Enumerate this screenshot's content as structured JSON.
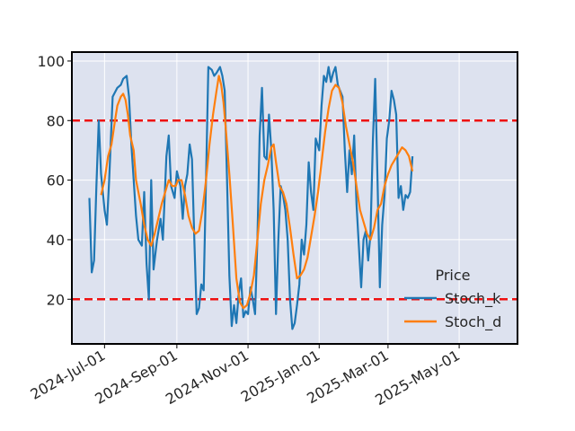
{
  "chart_data": {
    "type": "line",
    "title": "",
    "xlabel": "",
    "ylabel": "",
    "ylim": [
      5,
      103
    ],
    "xlim": [
      "2024-06-03",
      "2025-06-20"
    ],
    "grid": true,
    "legend": {
      "title": "Price",
      "location": "lower-right"
    },
    "y_ticks": [
      20,
      40,
      60,
      80,
      100
    ],
    "x_ticks": [
      {
        "date": "2024-07-01",
        "label": "2024-Jul-01"
      },
      {
        "date": "2024-09-01",
        "label": "2024-Sep-01"
      },
      {
        "date": "2024-11-01",
        "label": "2024-Nov-01"
      },
      {
        "date": "2025-01-01",
        "label": "2025-Jan-01"
      },
      {
        "date": "2025-03-01",
        "label": "2025-Mar-01"
      },
      {
        "date": "2025-05-01",
        "label": "2025-May-01"
      }
    ],
    "reference_lines": [
      {
        "y": 80,
        "color": "#ee1111",
        "style": "dashed"
      },
      {
        "y": 20,
        "color": "#ee1111",
        "style": "dashed"
      }
    ],
    "series": [
      {
        "name": "Stoch_k",
        "color": "#1f77b4",
        "points": [
          [
            "2024-06-18",
            54
          ],
          [
            "2024-06-20",
            29
          ],
          [
            "2024-06-22",
            33
          ],
          [
            "2024-06-24",
            58
          ],
          [
            "2024-06-26",
            80
          ],
          [
            "2024-06-28",
            62
          ],
          [
            "2024-07-01",
            50
          ],
          [
            "2024-07-03",
            45
          ],
          [
            "2024-07-05",
            60
          ],
          [
            "2024-07-08",
            88
          ],
          [
            "2024-07-12",
            91
          ],
          [
            "2024-07-15",
            92
          ],
          [
            "2024-07-17",
            94
          ],
          [
            "2024-07-20",
            95
          ],
          [
            "2024-07-22",
            88
          ],
          [
            "2024-07-24",
            72
          ],
          [
            "2024-07-26",
            60
          ],
          [
            "2024-07-28",
            48
          ],
          [
            "2024-07-30",
            40
          ],
          [
            "2024-08-02",
            38
          ],
          [
            "2024-08-04",
            56
          ],
          [
            "2024-08-06",
            32
          ],
          [
            "2024-08-08",
            20
          ],
          [
            "2024-08-10",
            60
          ],
          [
            "2024-08-12",
            30
          ],
          [
            "2024-08-15",
            40
          ],
          [
            "2024-08-18",
            47
          ],
          [
            "2024-08-20",
            40
          ],
          [
            "2024-08-23",
            68
          ],
          [
            "2024-08-25",
            75
          ],
          [
            "2024-08-27",
            58
          ],
          [
            "2024-08-30",
            54
          ],
          [
            "2024-09-01",
            63
          ],
          [
            "2024-09-04",
            58
          ],
          [
            "2024-09-06",
            47
          ],
          [
            "2024-09-08",
            58
          ],
          [
            "2024-09-10",
            62
          ],
          [
            "2024-09-12",
            72
          ],
          [
            "2024-09-14",
            67
          ],
          [
            "2024-09-16",
            40
          ],
          [
            "2024-09-18",
            15
          ],
          [
            "2024-09-20",
            17
          ],
          [
            "2024-09-22",
            25
          ],
          [
            "2024-09-24",
            23
          ],
          [
            "2024-09-26",
            60
          ],
          [
            "2024-09-28",
            98
          ],
          [
            "2024-10-01",
            97
          ],
          [
            "2024-10-03",
            95
          ],
          [
            "2024-10-05",
            96
          ],
          [
            "2024-10-08",
            98
          ],
          [
            "2024-10-10",
            95
          ],
          [
            "2024-10-12",
            90
          ],
          [
            "2024-10-14",
            60
          ],
          [
            "2024-10-16",
            28
          ],
          [
            "2024-10-18",
            11
          ],
          [
            "2024-10-20",
            18
          ],
          [
            "2024-10-22",
            12
          ],
          [
            "2024-10-24",
            22
          ],
          [
            "2024-10-26",
            27
          ],
          [
            "2024-10-28",
            14
          ],
          [
            "2024-10-30",
            16
          ],
          [
            "2024-11-01",
            15
          ],
          [
            "2024-11-03",
            24
          ],
          [
            "2024-11-05",
            20
          ],
          [
            "2024-11-07",
            15
          ],
          [
            "2024-11-09",
            40
          ],
          [
            "2024-11-11",
            75
          ],
          [
            "2024-11-13",
            91
          ],
          [
            "2024-11-15",
            68
          ],
          [
            "2024-11-17",
            67
          ],
          [
            "2024-11-19",
            82
          ],
          [
            "2024-11-21",
            70
          ],
          [
            "2024-11-23",
            50
          ],
          [
            "2024-11-25",
            15
          ],
          [
            "2024-11-27",
            40
          ],
          [
            "2024-11-29",
            58
          ],
          [
            "2024-12-01",
            55
          ],
          [
            "2024-12-03",
            50
          ],
          [
            "2024-12-05",
            40
          ],
          [
            "2024-12-07",
            20
          ],
          [
            "2024-12-09",
            10
          ],
          [
            "2024-12-11",
            12
          ],
          [
            "2024-12-13",
            18
          ],
          [
            "2024-12-15",
            25
          ],
          [
            "2024-12-17",
            40
          ],
          [
            "2024-12-19",
            35
          ],
          [
            "2024-12-21",
            45
          ],
          [
            "2024-12-23",
            66
          ],
          [
            "2024-12-25",
            56
          ],
          [
            "2024-12-27",
            50
          ],
          [
            "2024-12-29",
            74
          ],
          [
            "2025-01-01",
            70
          ],
          [
            "2025-01-03",
            85
          ],
          [
            "2025-01-05",
            95
          ],
          [
            "2025-01-07",
            93
          ],
          [
            "2025-01-09",
            98
          ],
          [
            "2025-01-11",
            93
          ],
          [
            "2025-01-13",
            96
          ],
          [
            "2025-01-15",
            98
          ],
          [
            "2025-01-17",
            92
          ],
          [
            "2025-01-19",
            90
          ],
          [
            "2025-01-21",
            88
          ],
          [
            "2025-01-23",
            70
          ],
          [
            "2025-01-25",
            56
          ],
          [
            "2025-01-27",
            70
          ],
          [
            "2025-01-29",
            62
          ],
          [
            "2025-01-31",
            75
          ],
          [
            "2025-02-02",
            52
          ],
          [
            "2025-02-04",
            38
          ],
          [
            "2025-02-06",
            24
          ],
          [
            "2025-02-08",
            40
          ],
          [
            "2025-02-10",
            43
          ],
          [
            "2025-02-12",
            33
          ],
          [
            "2025-02-14",
            42
          ],
          [
            "2025-02-16",
            73
          ],
          [
            "2025-02-18",
            94
          ],
          [
            "2025-02-20",
            60
          ],
          [
            "2025-02-22",
            24
          ],
          [
            "2025-02-24",
            45
          ],
          [
            "2025-02-26",
            55
          ],
          [
            "2025-02-28",
            74
          ],
          [
            "2025-03-02",
            80
          ],
          [
            "2025-03-04",
            90
          ],
          [
            "2025-03-06",
            87
          ],
          [
            "2025-03-08",
            82
          ],
          [
            "2025-03-10",
            54
          ],
          [
            "2025-03-12",
            58
          ],
          [
            "2025-03-14",
            50
          ],
          [
            "2025-03-16",
            55
          ],
          [
            "2025-03-18",
            54
          ],
          [
            "2025-03-20",
            56
          ],
          [
            "2025-03-22",
            68
          ]
        ]
      },
      {
        "name": "Stoch_d",
        "color": "#ff7f0e",
        "points": [
          [
            "2024-06-28",
            55
          ],
          [
            "2024-07-01",
            60
          ],
          [
            "2024-07-04",
            68
          ],
          [
            "2024-07-07",
            72
          ],
          [
            "2024-07-10",
            80
          ],
          [
            "2024-07-12",
            85
          ],
          [
            "2024-07-15",
            88
          ],
          [
            "2024-07-17",
            89
          ],
          [
            "2024-07-19",
            87
          ],
          [
            "2024-07-21",
            82
          ],
          [
            "2024-07-23",
            75
          ],
          [
            "2024-07-26",
            70
          ],
          [
            "2024-07-28",
            60
          ],
          [
            "2024-08-01",
            52
          ],
          [
            "2024-08-04",
            45
          ],
          [
            "2024-08-07",
            40
          ],
          [
            "2024-08-10",
            38
          ],
          [
            "2024-08-13",
            42
          ],
          [
            "2024-08-16",
            47
          ],
          [
            "2024-08-19",
            52
          ],
          [
            "2024-08-22",
            56
          ],
          [
            "2024-08-25",
            60
          ],
          [
            "2024-08-28",
            58
          ],
          [
            "2024-08-31",
            58
          ],
          [
            "2024-09-02",
            60
          ],
          [
            "2024-09-05",
            60
          ],
          [
            "2024-09-08",
            55
          ],
          [
            "2024-09-11",
            48
          ],
          [
            "2024-09-14",
            44
          ],
          [
            "2024-09-17",
            42
          ],
          [
            "2024-09-20",
            43
          ],
          [
            "2024-09-23",
            50
          ],
          [
            "2024-09-26",
            60
          ],
          [
            "2024-09-29",
            72
          ],
          [
            "2024-10-02",
            82
          ],
          [
            "2024-10-05",
            90
          ],
          [
            "2024-10-07",
            95
          ],
          [
            "2024-10-09",
            92
          ],
          [
            "2024-10-11",
            86
          ],
          [
            "2024-10-13",
            77
          ],
          [
            "2024-10-16",
            62
          ],
          [
            "2024-10-19",
            45
          ],
          [
            "2024-10-22",
            27
          ],
          [
            "2024-10-25",
            19
          ],
          [
            "2024-10-28",
            17
          ],
          [
            "2024-10-31",
            18
          ],
          [
            "2024-11-03",
            22
          ],
          [
            "2024-11-06",
            28
          ],
          [
            "2024-11-09",
            40
          ],
          [
            "2024-11-12",
            52
          ],
          [
            "2024-11-15",
            60
          ],
          [
            "2024-11-18",
            65
          ],
          [
            "2024-11-21",
            71
          ],
          [
            "2024-11-23",
            72
          ],
          [
            "2024-11-25",
            66
          ],
          [
            "2024-11-28",
            58
          ],
          [
            "2024-12-01",
            56
          ],
          [
            "2024-12-04",
            52
          ],
          [
            "2024-12-07",
            44
          ],
          [
            "2024-12-10",
            35
          ],
          [
            "2024-12-13",
            27
          ],
          [
            "2024-12-16",
            28
          ],
          [
            "2024-12-19",
            30
          ],
          [
            "2024-12-22",
            34
          ],
          [
            "2024-12-25",
            41
          ],
          [
            "2024-12-28",
            48
          ],
          [
            "2024-12-31",
            56
          ],
          [
            "2025-01-03",
            66
          ],
          [
            "2025-01-06",
            76
          ],
          [
            "2025-01-09",
            84
          ],
          [
            "2025-01-12",
            90
          ],
          [
            "2025-01-15",
            92
          ],
          [
            "2025-01-18",
            91
          ],
          [
            "2025-01-21",
            86
          ],
          [
            "2025-01-24",
            78
          ],
          [
            "2025-01-27",
            72
          ],
          [
            "2025-01-30",
            66
          ],
          [
            "2025-02-02",
            58
          ],
          [
            "2025-02-05",
            50
          ],
          [
            "2025-02-08",
            46
          ],
          [
            "2025-02-11",
            42
          ],
          [
            "2025-02-14",
            40
          ],
          [
            "2025-02-17",
            44
          ],
          [
            "2025-02-20",
            50
          ],
          [
            "2025-02-23",
            52
          ],
          [
            "2025-02-26",
            58
          ],
          [
            "2025-03-01",
            62
          ],
          [
            "2025-03-04",
            65
          ],
          [
            "2025-03-07",
            67
          ],
          [
            "2025-03-10",
            69
          ],
          [
            "2025-03-13",
            71
          ],
          [
            "2025-03-16",
            70
          ],
          [
            "2025-03-19",
            68
          ],
          [
            "2025-03-22",
            63
          ]
        ]
      }
    ]
  }
}
